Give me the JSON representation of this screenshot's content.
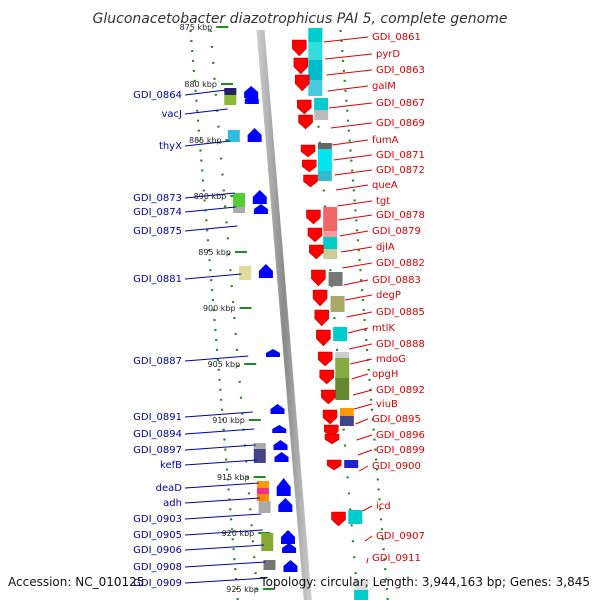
{
  "title": "Gluconacetobacter diazotrophicus PAI 5, complete genome",
  "footer": {
    "accession": "Accession: NC_010125",
    "summary": "Topology: circular; Length: 3,944,163 bp; Genes: 3,845"
  },
  "colors": {
    "forward_label": "#dd0000",
    "reverse_label": "#0000aa",
    "backbone": "#999999",
    "dotted_track": "#228b22",
    "arrow_forward": "#ff0000",
    "arrow_reverse": "#0000ff"
  },
  "kbp_marks": [
    "875 kbp",
    "880 kbp",
    "885 kbp",
    "890 kbp",
    "895 kbp",
    "900 kbp",
    "905 kbp",
    "910 kbp",
    "915 kbp",
    "920 kbp",
    "925 kbp"
  ],
  "forward_genes": [
    "GDI_0861",
    "pyrD",
    "GDI_0863",
    "galM",
    "GDI_0867",
    "GDI_0869",
    "fumA",
    "GDI_0871",
    "GDI_0872",
    "queA",
    "tgt",
    "GDI_0878",
    "GDI_0879",
    "djlA",
    "GDI_0882",
    "GDI_0883",
    "degP",
    "GDI_0885",
    "mtlK",
    "GDI_0888",
    "mdoG",
    "opgH",
    "GDI_0892",
    "viuB",
    "GDI_0895",
    "GDI_0896",
    "GDI_0899",
    "GDI_0900",
    "icd",
    "GDI_0907",
    "GDI_0911"
  ],
  "reverse_genes": [
    "GDI_0864",
    "vacJ",
    "thyX",
    "GDI_0873",
    "GDI_0874",
    "GDI_0875",
    "GDI_0881",
    "GDI_0887",
    "GDI_0891",
    "GDI_0894",
    "GDI_0897",
    "kefB",
    "deaD",
    "adh",
    "GDI_0903",
    "GDI_0905",
    "GDI_0906",
    "GDI_0908",
    "GDI_0909"
  ]
}
